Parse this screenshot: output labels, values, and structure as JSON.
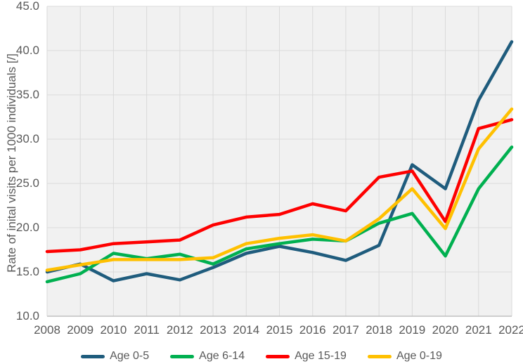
{
  "figure": {
    "background": "#ffffff",
    "plot_background": "#f1f1f1",
    "gridline_color": "#dadada",
    "axis_line_color": "#bfbfbf",
    "text_color": "#595959"
  },
  "y_axis": {
    "title": "Rate of inital visits per 1000 individuals [/]",
    "tick_labels": [
      "10.0",
      "15.0",
      "20.0",
      "25.0",
      "30.0",
      "35.0",
      "40.0",
      "45.0"
    ],
    "min": 10,
    "max": 45,
    "step": 5
  },
  "x_axis": {
    "tick_labels": [
      "2008",
      "2009",
      "2010",
      "2011",
      "2012",
      "2013",
      "2014",
      "2015",
      "2016",
      "2017",
      "2018",
      "2019",
      "2020",
      "2021",
      "2022"
    ]
  },
  "chart_data": {
    "type": "line",
    "title": "",
    "xlabel": "",
    "ylabel": "Rate of inital visits per 1000 individuals [/]",
    "ylim": [
      10,
      45
    ],
    "grid": true,
    "legend_position": "bottom",
    "categories": [
      2008,
      2009,
      2010,
      2011,
      2012,
      2013,
      2014,
      2015,
      2016,
      2017,
      2018,
      2019,
      2020,
      2021,
      2022
    ],
    "series": [
      {
        "name": "Age 0-5",
        "color": "#1f5c7d",
        "values": [
          15.0,
          15.9,
          14.0,
          14.8,
          14.1,
          15.5,
          17.1,
          17.9,
          17.2,
          16.3,
          18.0,
          27.1,
          24.4,
          34.4,
          41.0
        ]
      },
      {
        "name": "Age 6-14",
        "color": "#00b050",
        "values": [
          13.9,
          14.8,
          17.1,
          16.5,
          17.0,
          15.9,
          17.6,
          18.2,
          18.7,
          18.5,
          20.5,
          21.6,
          16.8,
          24.4,
          29.1
        ]
      },
      {
        "name": "Age 15-19",
        "color": "#fe0000",
        "values": [
          17.3,
          17.5,
          18.2,
          18.4,
          18.6,
          20.3,
          21.2,
          21.5,
          22.7,
          21.9,
          25.7,
          26.4,
          20.7,
          31.2,
          32.2
        ]
      },
      {
        "name": "Age 0-19",
        "color": "#ffc000",
        "values": [
          15.2,
          15.8,
          16.4,
          16.4,
          16.4,
          16.6,
          18.2,
          18.8,
          19.2,
          18.5,
          21.0,
          24.4,
          19.9,
          28.9,
          33.4
        ]
      }
    ]
  }
}
